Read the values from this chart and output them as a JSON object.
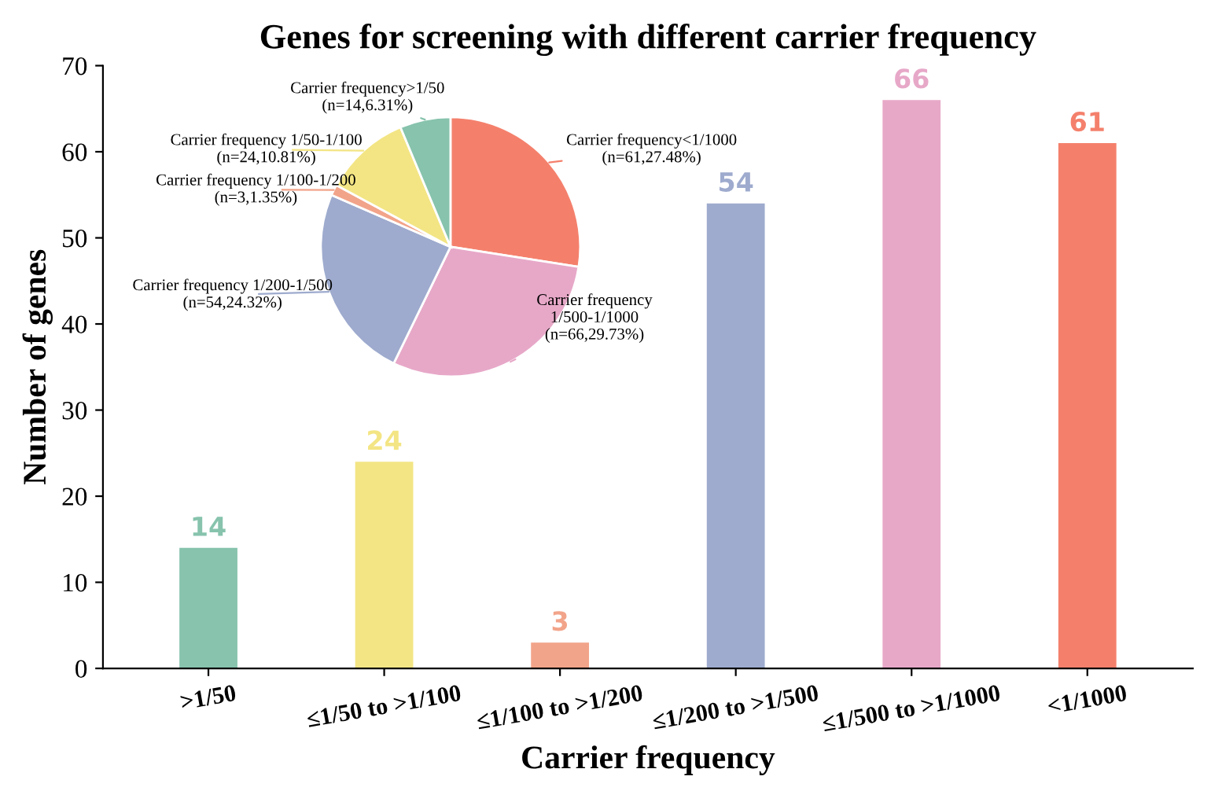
{
  "chart_data": [
    {
      "type": "bar",
      "title": "Genes for screening with different carrier frequency",
      "xlabel": "Carrier frequency",
      "ylabel": "Number of genes",
      "categories": [
        ">1/50",
        "≤1/50 to >1/100",
        "≤1/100 to >1/200",
        "≤1/200 to >1/500",
        "≤1/500 to >1/1000",
        "<1/1000"
      ],
      "values": [
        14,
        24,
        3,
        54,
        66,
        61
      ],
      "colors": [
        "#87c3ad",
        "#f3e584",
        "#f2a48a",
        "#9eabce",
        "#e7a8c8",
        "#f4806c"
      ],
      "ylim": [
        0,
        70
      ],
      "yticks": [
        0,
        10,
        20,
        30,
        40,
        50,
        60,
        70
      ],
      "data_labels": true,
      "grid": false,
      "legend": false
    },
    {
      "type": "pie",
      "categories": [
        "Carrier frequency<1/1000",
        "Carrier frequency\n1/500-1/1000",
        "Carrier frequency 1/200-1/500",
        "Carrier frequency 1/100-1/200",
        "Carrier frequency 1/50-1/100",
        "Carrier frequency>1/50"
      ],
      "values": [
        27.48,
        29.73,
        24.32,
        1.35,
        10.81,
        6.31
      ],
      "value_labels": [
        "(n=61,27.48%)",
        "(n=66,29.73%)",
        "(n=54,24.32%)",
        "(n=3,1.35%)",
        "(n=24,10.81%)",
        "(n=14,6.31%)"
      ],
      "colors": [
        "#f4806c",
        "#e7a8c8",
        "#9eabce",
        "#f2a48a",
        "#f3e584",
        "#87c3ad"
      ]
    }
  ]
}
